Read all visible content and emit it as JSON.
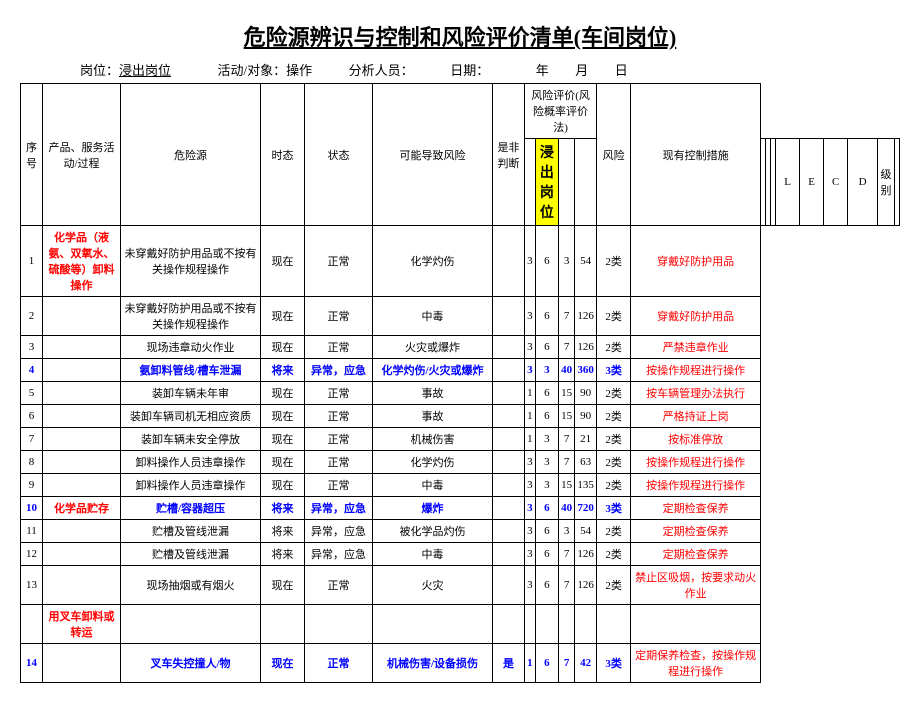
{
  "title": "危险源辨识与控制和风险评价清单(车间岗位)",
  "meta": {
    "post_label": "岗位：",
    "post_value": "浸出岗位",
    "activity_label": "活动/对象：",
    "activity_value": "操作",
    "analyst_label": "分析人员：",
    "date_label": "日期：",
    "year": "年",
    "month": "月",
    "day": "日"
  },
  "headers": {
    "seq": "序号",
    "activity": "产品、服务活动/过程",
    "hazard": "危险源",
    "time": "时态",
    "state": "状态",
    "possible_risk": "可能导致风险",
    "judge": "是非判断",
    "eval_group": "风险评价(风险概率评价法)",
    "L": "L",
    "E": "E",
    "C": "C",
    "D": "D",
    "level": "风险",
    "level_sub": "级别",
    "control": "现有控制措施"
  },
  "section_highlight": "浸出岗位",
  "rows": [
    {
      "seq": "1",
      "activity": "化学品（液氨、双氧水、硫酸等）卸料操作",
      "hazard": "未穿戴好防护用品或不按有关操作规程操作",
      "time": "现在",
      "state": "正常",
      "risk": "化学灼伤",
      "judge": "",
      "L": "3",
      "E": "6",
      "C": "3",
      "D": "54",
      "level": "2类",
      "ctrl": "穿戴好防护用品",
      "blue": false,
      "actRed": true
    },
    {
      "seq": "2",
      "activity": "",
      "hazard": "未穿戴好防护用品或不按有关操作规程操作",
      "time": "现在",
      "state": "正常",
      "risk": "中毒",
      "judge": "",
      "L": "3",
      "E": "6",
      "C": "7",
      "D": "126",
      "level": "2类",
      "ctrl": "穿戴好防护用品",
      "blue": false
    },
    {
      "seq": "3",
      "activity": "",
      "hazard": "现场违章动火作业",
      "time": "现在",
      "state": "正常",
      "risk": "火灾或爆炸",
      "judge": "",
      "L": "3",
      "E": "6",
      "C": "7",
      "D": "126",
      "level": "2类",
      "ctrl": "严禁违章作业",
      "blue": false
    },
    {
      "seq": "4",
      "activity": "",
      "hazard": "氨卸料管线/槽车泄漏",
      "time": "将来",
      "state": "异常，应急",
      "risk": "化学灼伤/火灾或爆炸",
      "judge": "",
      "L": "3",
      "E": "3",
      "C": "40",
      "D": "360",
      "level": "3类",
      "ctrl": "按操作规程进行操作",
      "blue": true
    },
    {
      "seq": "5",
      "activity": "",
      "hazard": "装卸车辆未年审",
      "time": "现在",
      "state": "正常",
      "risk": "事故",
      "judge": "",
      "L": "1",
      "E": "6",
      "C": "15",
      "D": "90",
      "level": "2类",
      "ctrl": "按车辆管理办法执行",
      "blue": false
    },
    {
      "seq": "6",
      "activity": "",
      "hazard": "装卸车辆司机无相应资质",
      "time": "现在",
      "state": "正常",
      "risk": "事故",
      "judge": "",
      "L": "1",
      "E": "6",
      "C": "15",
      "D": "90",
      "level": "2类",
      "ctrl": "严格持证上岗",
      "blue": false
    },
    {
      "seq": "7",
      "activity": "",
      "hazard": "装卸车辆未安全停放",
      "time": "现在",
      "state": "正常",
      "risk": "机械伤害",
      "judge": "",
      "L": "1",
      "E": "3",
      "C": "7",
      "D": "21",
      "level": "2类",
      "ctrl": "按标准停放",
      "blue": false
    },
    {
      "seq": "8",
      "activity": "",
      "hazard": "卸料操作人员违章操作",
      "time": "现在",
      "state": "正常",
      "risk": "化学灼伤",
      "judge": "",
      "L": "3",
      "E": "3",
      "C": "7",
      "D": "63",
      "level": "2类",
      "ctrl": "按操作规程进行操作",
      "blue": false
    },
    {
      "seq": "9",
      "activity": "",
      "hazard": "卸料操作人员违章操作",
      "time": "现在",
      "state": "正常",
      "risk": "中毒",
      "judge": "",
      "L": "3",
      "E": "3",
      "C": "15",
      "D": "135",
      "level": "2类",
      "ctrl": "按操作规程进行操作",
      "blue": false
    },
    {
      "seq": "10",
      "activity": "化学品贮存",
      "hazard": "贮槽/容器超压",
      "time": "将来",
      "state": "异常，应急",
      "risk": "爆炸",
      "judge": "",
      "L": "3",
      "E": "6",
      "C": "40",
      "D": "720",
      "level": "3类",
      "ctrl": "定期检查保养",
      "blue": true,
      "actRed": true
    },
    {
      "seq": "11",
      "activity": "",
      "hazard": "贮槽及管线泄漏",
      "time": "将来",
      "state": "异常，应急",
      "risk": "被化学品灼伤",
      "judge": "",
      "L": "3",
      "E": "6",
      "C": "3",
      "D": "54",
      "level": "2类",
      "ctrl": "定期检查保养",
      "blue": false
    },
    {
      "seq": "12",
      "activity": "",
      "hazard": "贮槽及管线泄漏",
      "time": "将来",
      "state": "异常，应急",
      "risk": "中毒",
      "judge": "",
      "L": "3",
      "E": "6",
      "C": "7",
      "D": "126",
      "level": "2类",
      "ctrl": "定期检查保养",
      "blue": false
    },
    {
      "seq": "13",
      "activity": "",
      "hazard": "现场抽烟或有烟火",
      "time": "现在",
      "state": "正常",
      "risk": "火灾",
      "judge": "",
      "L": "3",
      "E": "6",
      "C": "7",
      "D": "126",
      "level": "2类",
      "ctrl": "禁止区吸烟，按要求动火作业",
      "blue": false
    },
    {
      "seq": "",
      "activity": "用叉车卸料或转运",
      "hazard": "",
      "time": "",
      "state": "",
      "risk": "",
      "judge": "",
      "L": "",
      "E": "",
      "C": "",
      "D": "",
      "level": "",
      "ctrl": "",
      "blue": false,
      "actRed": true,
      "sectionRow": true
    },
    {
      "seq": "14",
      "activity": "",
      "hazard": "叉车失控撞人/物",
      "time": "现在",
      "state": "正常",
      "risk": "机械伤害/设备损伤",
      "judge": "是",
      "L": "1",
      "E": "6",
      "C": "7",
      "D": "42",
      "level": "3类",
      "ctrl": "定期保养检查，按操作规程进行操作",
      "blue": true
    }
  ],
  "colors": {
    "highlight": "#ffff00",
    "red": "#ff0000",
    "blue": "#0000ff",
    "border": "#000000",
    "bg": "#ffffff"
  }
}
